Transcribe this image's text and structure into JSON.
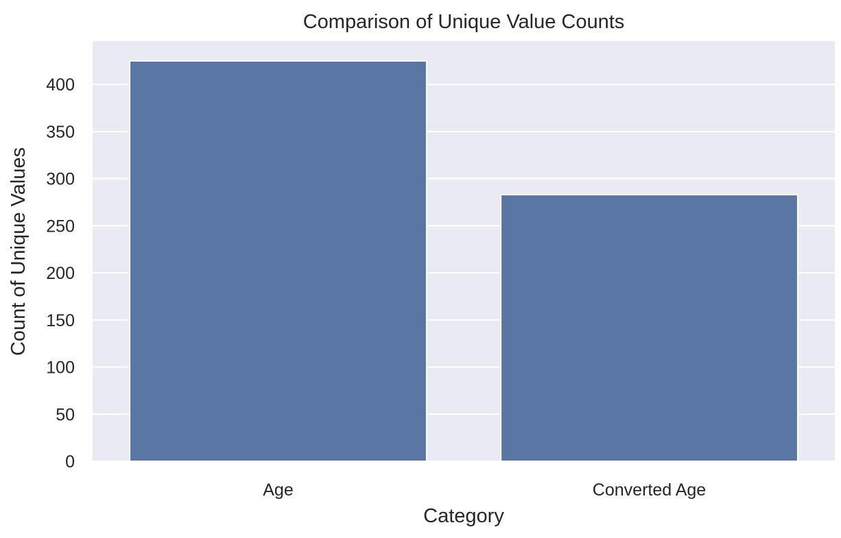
{
  "chart_data": {
    "type": "bar",
    "title": "Comparison of Unique Value Counts",
    "xlabel": "Category",
    "ylabel": "Count of Unique Values",
    "categories": [
      "Age",
      "Converted Age"
    ],
    "values": [
      425,
      283
    ],
    "ylim": [
      0,
      446
    ],
    "yticks": [
      0,
      50,
      100,
      150,
      200,
      250,
      300,
      350,
      400
    ],
    "grid": true,
    "legend": "none",
    "colors": {
      "bar": "#5875a4",
      "plot_background": "#eaeaf2",
      "grid": "#ffffff",
      "text": "#262626"
    }
  }
}
